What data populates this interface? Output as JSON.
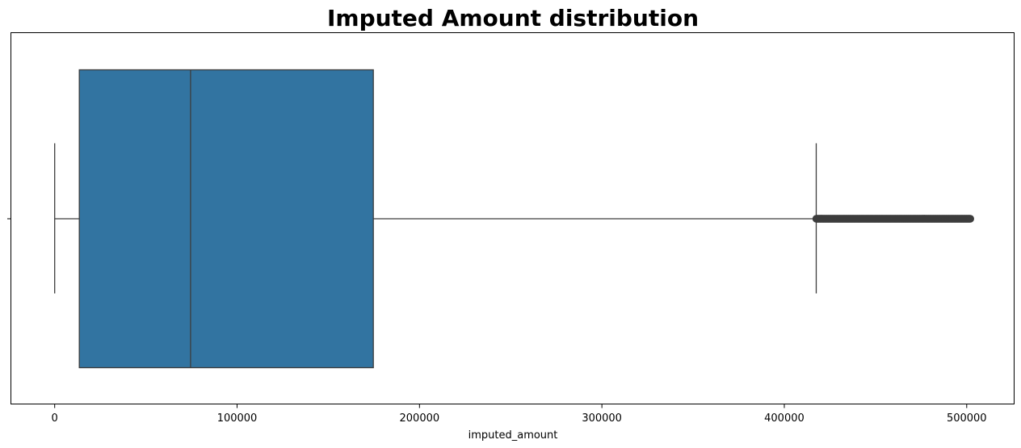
{
  "chart_data": {
    "type": "box",
    "title": "Imputed Amount distribution",
    "xlabel": "imputed_amount",
    "ylabel": "",
    "xlim": [
      -24000,
      526000
    ],
    "xticks": [
      0,
      100000,
      200000,
      300000,
      400000,
      500000
    ],
    "xtick_labels": [
      "0",
      "100000",
      "200000",
      "300000",
      "400000",
      "500000"
    ],
    "orientation": "horizontal",
    "grid": false,
    "legend": "none",
    "box": {
      "whisker_low": 0,
      "q1": 13500,
      "median": 74500,
      "q3": 174700,
      "whisker_high": 417500,
      "outlier_range": [
        417500,
        502000
      ]
    },
    "colors": {
      "box_fill": "#3274a1",
      "line": "#3d3d3d",
      "outlier": "#3d3d3d"
    }
  }
}
